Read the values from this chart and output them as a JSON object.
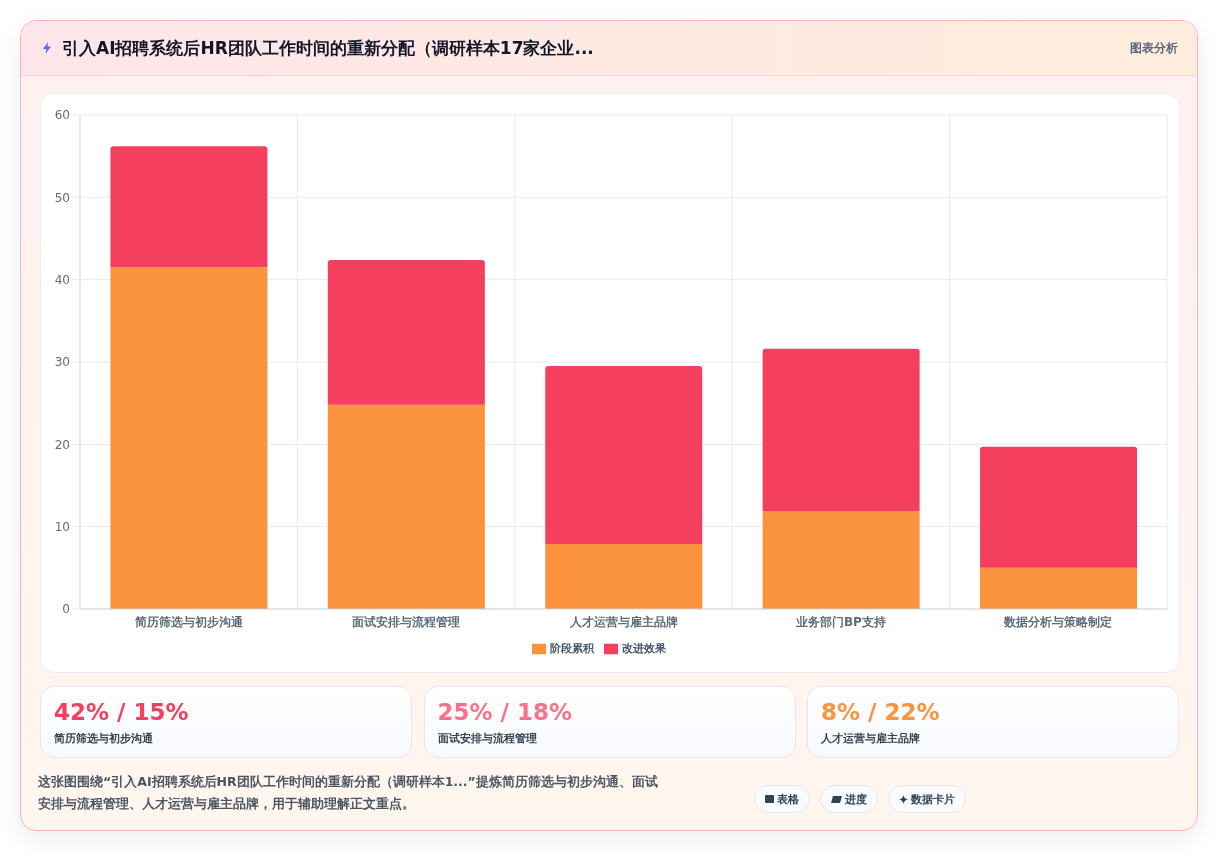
{
  "chart_data": {
    "type": "bar",
    "title": "引入AI招聘系统后HR团队工作时间的重新分配（调研样本17家企业...",
    "categories": [
      "简历筛选与初步沟通",
      "面试安排与流程管理",
      "人才运营与雇主品牌",
      "业务部门BP支持",
      "数据分析与策略制定"
    ],
    "series": [
      {
        "name": "阶段累积",
        "color": "#fb923c",
        "values": [
          41.5,
          24.8,
          7.9,
          11.9,
          5.0
        ]
      },
      {
        "name": "改进效果",
        "color": "#f43f5e",
        "values": [
          14.7,
          17.6,
          21.6,
          19.7,
          14.7
        ]
      }
    ],
    "stacked": true,
    "ylim": [
      0,
      60
    ],
    "yticks": [
      0,
      10,
      20,
      30,
      40,
      50,
      60
    ],
    "grid": true,
    "legend": "bottom",
    "annotations": [
      "图表分析",
      "42% / 15%",
      "简历筛选与初步沟通",
      "25% / 18%",
      "面试安排与流程管理",
      "8% / 22%",
      "人才运营与雇主品牌",
      "这张图围绕“引入AI招聘系统后HR团队工作时间的重新分配（调研样本1...”提炼简历筛选与初步沟通、面试安排与流程管理、人才运营与雇主品牌，用于辅助理解正文重点。",
      "表格",
      "进度",
      "数据卡片"
    ]
  }
}
